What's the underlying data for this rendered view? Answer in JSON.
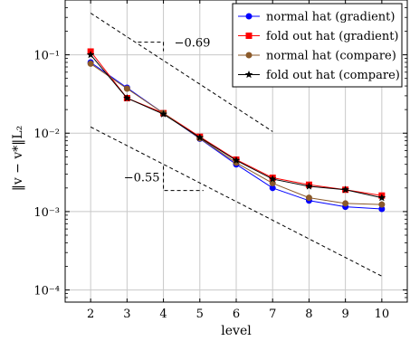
{
  "chart_data": {
    "type": "line",
    "xlabel": "level",
    "ylabel": "‖v − v*‖L₂",
    "y_scale": "log",
    "xlim": [
      1.3,
      10.7
    ],
    "ylim": [
      7e-05,
      0.5
    ],
    "x_ticks": [
      2,
      3,
      4,
      5,
      6,
      7,
      8,
      9,
      10
    ],
    "x_tick_labels": [
      "2",
      "3",
      "4",
      "5",
      "6",
      "7",
      "8",
      "9",
      "10"
    ],
    "y_ticks": [
      0.0001,
      0.001,
      0.01,
      0.1
    ],
    "y_tick_labels": [
      "10⁻⁴",
      "10⁻³",
      "10⁻²",
      "10⁻¹"
    ],
    "grid": true,
    "legend_position": "top-right",
    "x": [
      2,
      3,
      4,
      5,
      6,
      7,
      8,
      9,
      10
    ],
    "series": [
      {
        "name": "normal hat (gradient)",
        "color": "#0000ff",
        "marker": "circle",
        "values": [
          0.08,
          0.038,
          0.018,
          0.0085,
          0.004,
          0.002,
          0.00138,
          0.00115,
          0.00108
        ]
      },
      {
        "name": "fold out hat (gradient)",
        "color": "#ff0000",
        "marker": "square",
        "values": [
          0.11,
          0.028,
          0.018,
          0.009,
          0.0046,
          0.0027,
          0.0022,
          0.0019,
          0.0016
        ]
      },
      {
        "name": "normal hat (compare)",
        "color": "#8b5a2b",
        "marker": "circle",
        "values": [
          0.077,
          0.037,
          0.018,
          0.0086,
          0.0042,
          0.0023,
          0.0015,
          0.00127,
          0.00123
        ]
      },
      {
        "name": "fold out hat (compare)",
        "color": "#000000",
        "marker": "star",
        "values": [
          0.1,
          0.028,
          0.0175,
          0.0088,
          0.0045,
          0.0026,
          0.0021,
          0.0019,
          0.0015
        ]
      }
    ],
    "reference_lines": [
      {
        "label": "−0.69",
        "x": [
          2,
          7
        ],
        "y": [
          0.34,
          0.0105
        ],
        "slope_triangle": {
          "x": [
            3.3,
            4.0
          ],
          "y_top": 0.145
        }
      },
      {
        "label": "−0.55",
        "x": [
          2,
          10
        ],
        "y": [
          0.012,
          0.00015
        ],
        "slope_triangle": {
          "x": [
            4.0,
            5.1
          ],
          "y_top": 0.0038
        }
      }
    ]
  }
}
